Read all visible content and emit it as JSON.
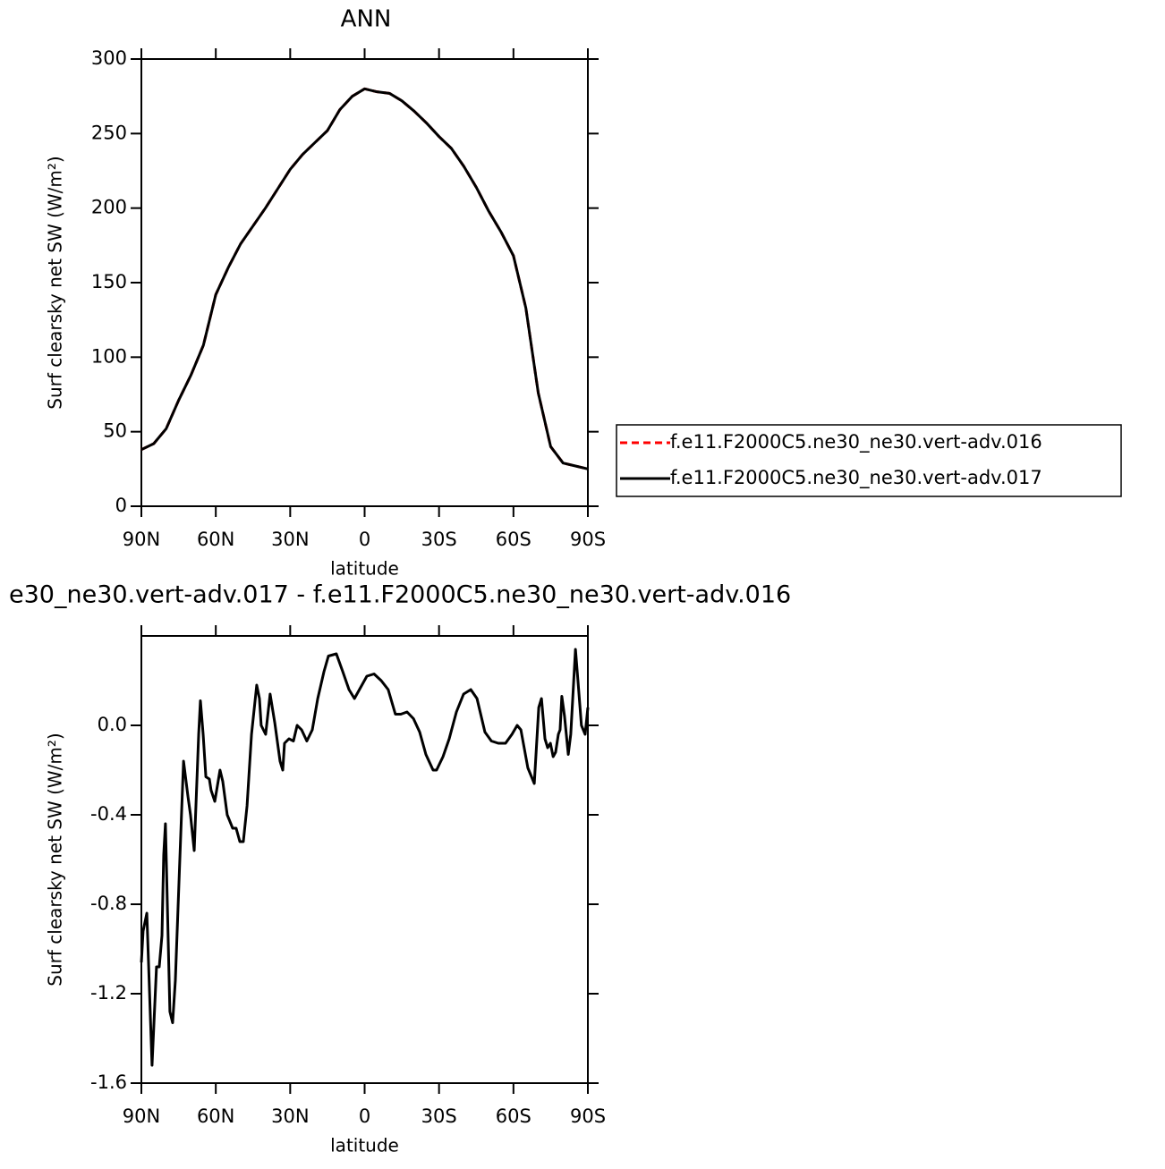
{
  "chart_data": [
    {
      "type": "line",
      "title": "ANN",
      "xlabel": "latitude",
      "ylabel": "Surf clearsky net SW (W/m²)",
      "xlim": [
        90,
        -90
      ],
      "ylim": [
        0,
        300
      ],
      "xticks": [
        {
          "value": 90,
          "label": "90N"
        },
        {
          "value": 60,
          "label": "60N"
        },
        {
          "value": 30,
          "label": "30N"
        },
        0,
        {
          "value": -30,
          "label": "30S"
        },
        {
          "value": -60,
          "label": "60S"
        },
        {
          "value": -90,
          "label": "90S"
        }
      ],
      "yticks": [
        0,
        50,
        100,
        150,
        200,
        250,
        300
      ],
      "legend": "right",
      "x": [
        90,
        85,
        80,
        75,
        70,
        65,
        60,
        55,
        50,
        45,
        40,
        35,
        30,
        25,
        20,
        15,
        10,
        5,
        0,
        -5,
        -10,
        -15,
        -20,
        -25,
        -30,
        -35,
        -40,
        -45,
        -50,
        -55,
        -60,
        -65,
        -70,
        -75,
        -80,
        -85,
        -90
      ],
      "series": [
        {
          "name": "f.e11.F2000C5.ne30_ne30.vert-adv.016",
          "color": "#ff0000",
          "dashed": true,
          "values": [
            38,
            42,
            52,
            71,
            88,
            108,
            142,
            160,
            176,
            188,
            200,
            213,
            226,
            236,
            244,
            252,
            266,
            275,
            280,
            278,
            277,
            272,
            265,
            257,
            248,
            240,
            228,
            214,
            198,
            184,
            168,
            133,
            76,
            40,
            29,
            27,
            25
          ]
        },
        {
          "name": "f.e11.F2000C5.ne30_ne30.vert-adv.017",
          "color": "#000000",
          "dashed": false,
          "values": [
            38,
            42,
            52,
            71,
            88,
            108,
            142,
            160,
            176,
            188,
            200,
            213,
            226,
            236,
            244,
            252,
            266,
            275,
            280,
            278,
            277,
            272,
            265,
            257,
            248,
            240,
            228,
            214,
            198,
            184,
            168,
            133,
            76,
            40,
            29,
            27,
            25
          ]
        }
      ]
    },
    {
      "type": "line",
      "title": "e30_ne30.vert-adv.017 - f.e11.F2000C5.ne30_ne30.vert-adv.016",
      "xlabel": "latitude",
      "ylabel": "Surf clearsky net SW (W/m²)",
      "xlim": [
        90,
        -90
      ],
      "ylim": [
        -1.6,
        0.4
      ],
      "xticks": [
        {
          "value": 90,
          "label": "90N"
        },
        {
          "value": 60,
          "label": "60N"
        },
        {
          "value": 30,
          "label": "30N"
        },
        0,
        {
          "value": -30,
          "label": "30S"
        },
        {
          "value": -60,
          "label": "60S"
        },
        {
          "value": -90,
          "label": "90S"
        }
      ],
      "yticks": [
        -1.6,
        -1.2,
        -0.8,
        -0.4,
        {
          "value": 0,
          "label": "0.0"
        }
      ],
      "x": [
        90,
        89.3,
        87.8,
        85.7,
        83.9,
        82.8,
        81.7,
        81.0,
        80.3,
        78.5,
        77.4,
        76.3,
        74.1,
        73.0,
        71.2,
        70.2,
        68.7,
        66.9,
        66.2,
        65.1,
        64.0,
        62.6,
        61.9,
        60.4,
        58.3,
        57.2,
        55.4,
        53.2,
        51.8,
        50.3,
        48.9,
        47.4,
        45.6,
        43.5,
        42.4,
        41.7,
        39.9,
        38.1,
        36.2,
        34.1,
        33.0,
        32.3,
        30.5,
        28.7,
        27.2,
        25.4,
        23.3,
        21.1,
        18.9,
        16.4,
        14.6,
        11.4,
        8.8,
        6.3,
        4.1,
        1.6,
        -0.9,
        -3.8,
        -6.7,
        -9.5,
        -12.4,
        -14.6,
        -17.1,
        -19.7,
        -22.2,
        -24.7,
        -27.6,
        -29.0,
        -31.6,
        -34.1,
        -37.0,
        -39.9,
        -42.8,
        -45.3,
        -48.5,
        -51.1,
        -53.9,
        -56.8,
        -59.4,
        -61.5,
        -63.0,
        -65.8,
        -68.4,
        -70.2,
        -71.3,
        -72.7,
        -73.8,
        -74.9,
        -76.0,
        -77.0,
        -78.1,
        -78.8,
        -79.5,
        -80.6,
        -82.1,
        -83.1,
        -85.0,
        -86.0,
        -87.4,
        -88.9,
        -90
      ],
      "series": [
        {
          "color": "#000000",
          "dashed": false,
          "values": [
            -1.06,
            -0.92,
            -0.84,
            -1.52,
            -1.08,
            -1.08,
            -0.94,
            -0.58,
            -0.44,
            -1.28,
            -1.33,
            -1.14,
            -0.48,
            -0.16,
            -0.32,
            -0.4,
            -0.56,
            -0.04,
            0.11,
            -0.04,
            -0.23,
            -0.24,
            -0.29,
            -0.34,
            -0.2,
            -0.25,
            -0.4,
            -0.46,
            -0.46,
            -0.52,
            -0.52,
            -0.36,
            -0.04,
            0.18,
            0.12,
            0.0,
            -0.04,
            0.14,
            0.01,
            -0.16,
            -0.2,
            -0.08,
            -0.06,
            -0.07,
            0.0,
            -0.02,
            -0.07,
            -0.02,
            0.12,
            0.24,
            0.31,
            0.32,
            0.24,
            0.16,
            0.12,
            0.17,
            0.22,
            0.23,
            0.2,
            0.16,
            0.05,
            0.05,
            0.06,
            0.03,
            -0.03,
            -0.13,
            -0.2,
            -0.2,
            -0.14,
            -0.06,
            0.06,
            0.14,
            0.16,
            0.12,
            -0.03,
            -0.07,
            -0.08,
            -0.08,
            -0.04,
            0.0,
            -0.02,
            -0.19,
            -0.26,
            0.08,
            0.12,
            -0.06,
            -0.1,
            -0.08,
            -0.14,
            -0.12,
            -0.04,
            -0.02,
            0.13,
            0.04,
            -0.13,
            -0.04,
            0.34,
            0.2,
            0.0,
            -0.04,
            0.08
          ]
        }
      ]
    }
  ]
}
